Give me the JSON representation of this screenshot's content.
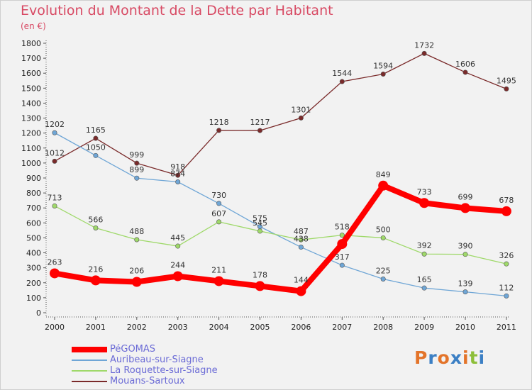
{
  "title": "Evolution du Montant de la Dette par Habitant",
  "unit": "(en €)",
  "logo": {
    "text": "Proxiti",
    "colors": [
      "#e3742a",
      "#3b7fc4",
      "#e3742a",
      "#3b7fc4",
      "#e3742a",
      "#8dbf3a",
      "#3b7fc4"
    ]
  },
  "chart_data": {
    "type": "line",
    "title": "Evolution du Montant de la Dette par Habitant",
    "ylabel": "(en €)",
    "xlabel": "",
    "categories": [
      "2000",
      "2001",
      "2002",
      "2003",
      "2004",
      "2005",
      "2006",
      "2007",
      "2008",
      "2009",
      "2010",
      "2011"
    ],
    "ylim": [
      0,
      1800
    ],
    "yticks": [
      0,
      100,
      200,
      300,
      400,
      500,
      600,
      700,
      800,
      900,
      1000,
      1100,
      1200,
      1300,
      1400,
      1500,
      1600,
      1700,
      1800
    ],
    "grid": false,
    "legend_position": "bottom-left",
    "series": [
      {
        "name": "PéGOMAS",
        "color": "#ff0000",
        "values": [
          263,
          216,
          206,
          244,
          211,
          178,
          144,
          459,
          849,
          733,
          699,
          678
        ],
        "labels": [
          "263",
          "216",
          "206",
          "244",
          "211",
          "178",
          "144",
          "",
          "849",
          "733",
          "699",
          "678"
        ]
      },
      {
        "name": "Auribeau-sur-Siagne",
        "color": "#6fa6d6",
        "values": [
          1202,
          1050,
          899,
          874,
          730,
          575,
          438,
          317,
          225,
          165,
          139,
          112
        ],
        "labels": [
          "1202",
          "1050",
          "899",
          "874",
          "730",
          "575",
          "438",
          "317",
          "225",
          "165",
          "139",
          "112"
        ]
      },
      {
        "name": "La Roquette-sur-Siagne",
        "color": "#9fd96a",
        "values": [
          713,
          566,
          488,
          445,
          607,
          545,
          487,
          518,
          500,
          392,
          390,
          326
        ],
        "labels": [
          "713",
          "566",
          "488",
          "445",
          "607",
          "545",
          "487",
          "518",
          "500",
          "392",
          "390",
          "326"
        ]
      },
      {
        "name": "Mouans-Sartoux",
        "color": "#7a2a2a",
        "values": [
          1012,
          1165,
          999,
          918,
          1218,
          1217,
          1301,
          1544,
          1594,
          1732,
          1606,
          1495
        ],
        "labels": [
          "1012",
          "1165",
          "999",
          "918",
          "1218",
          "1217",
          "1301",
          "1544",
          "1594",
          "1732",
          "1606",
          "1495"
        ]
      }
    ]
  }
}
